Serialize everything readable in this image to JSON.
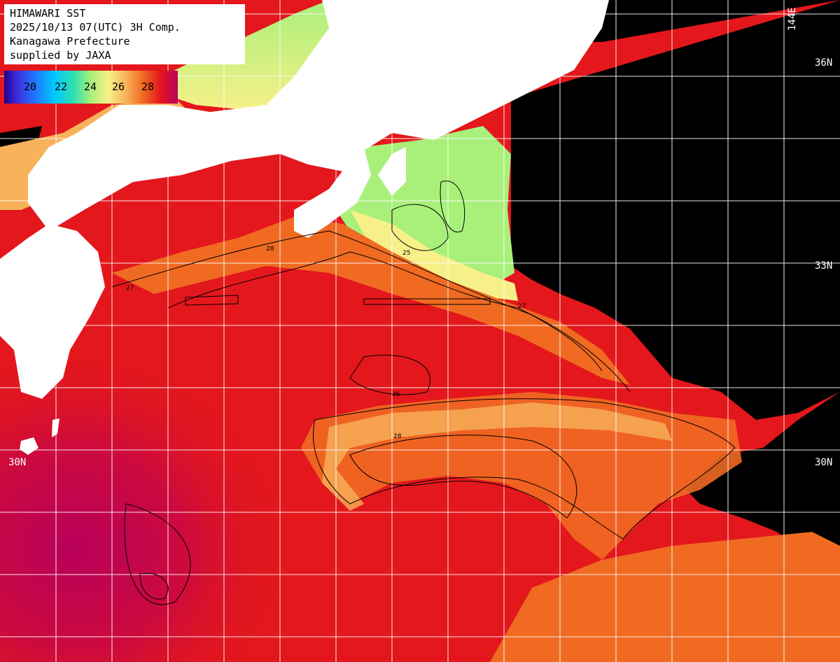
{
  "info": {
    "line1": "HIMAWARI SST",
    "line2": "2025/10/13 07(UTC) 3H Comp.",
    "line3": "Kanagawa Prefecture",
    "line4": "supplied by JAXA"
  },
  "legend": {
    "ticks": [
      "20",
      "22",
      "24",
      "26",
      "28"
    ]
  },
  "grid_labels": {
    "lat_36": "36N",
    "lat_33": "33N",
    "lat_30_left": "30N",
    "lat_30_right": "30N",
    "lon_144": "144E"
  },
  "contour_labels": [
    "25",
    "26",
    "27",
    "28"
  ],
  "colors": {
    "land": "#ffffff",
    "no_data": "#000000",
    "sst_28_plus": "#e3171c",
    "sst_29_plus": "#b8005a",
    "sst_27": "#f06a22",
    "sst_26": "#f8b25a",
    "sst_25": "#f7f088",
    "sst_24": "#a8f07a",
    "grid": "#ffffff"
  }
}
